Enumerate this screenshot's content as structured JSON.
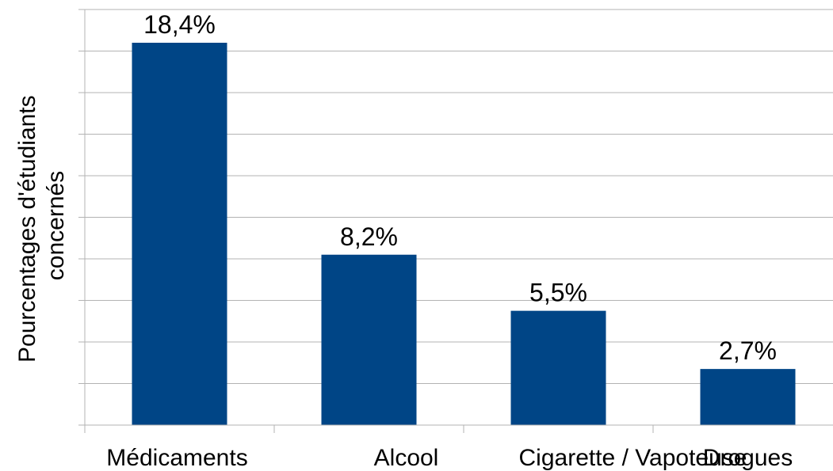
{
  "chart_data": {
    "type": "bar",
    "categories": [
      "Médicaments",
      "Alcool",
      "Cigarette / Vapoteuse",
      "Drogues"
    ],
    "values": [
      18.4,
      8.2,
      5.5,
      2.7
    ],
    "value_labels": [
      "18,4%",
      "8,2%",
      "5,5%",
      "2,7%"
    ],
    "title": "",
    "xlabel": "",
    "ylabel_lines": [
      "Pourcentages d'étudiants",
      "concernés"
    ],
    "ylim": [
      0,
      20
    ],
    "ytick_count": 10,
    "grid": true,
    "bar_color": "#004586"
  }
}
